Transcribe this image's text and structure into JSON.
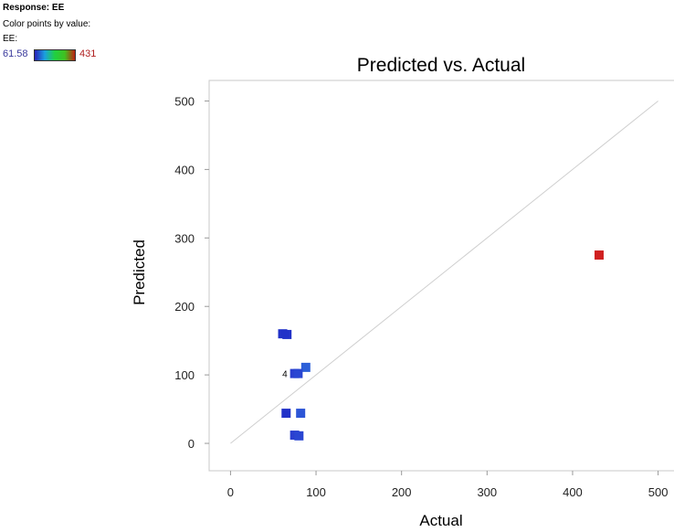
{
  "legend": {
    "heading": "Response: EE",
    "caption": "Color points by value:",
    "var_label": "EE:",
    "min_label": "61.58",
    "max_label": "431",
    "gradient_colors": [
      "#2a20b8",
      "#1aa0e0",
      "#20d040",
      "#40c020",
      "#c02010"
    ]
  },
  "chart_data": {
    "type": "scatter",
    "title": "Predicted vs. Actual",
    "xlabel": "Actual",
    "ylabel": "Predicted",
    "xlim": [
      -25,
      525
    ],
    "ylim": [
      -40,
      530
    ],
    "xticks": [
      "0",
      "100",
      "200",
      "300",
      "400",
      "500"
    ],
    "yticks": [
      "0",
      "100",
      "200",
      "300",
      "400",
      "500"
    ],
    "reference_line": {
      "from": [
        0,
        0
      ],
      "to": [
        500,
        500
      ],
      "color": "#cfcfcf"
    },
    "points": [
      {
        "x": 61,
        "y": 160,
        "color": "#2232c8",
        "label": ""
      },
      {
        "x": 66,
        "y": 159,
        "color": "#2232c8",
        "label": ""
      },
      {
        "x": 88,
        "y": 111,
        "color": "#2c5fd8",
        "label": ""
      },
      {
        "x": 75,
        "y": 102,
        "color": "#2a3fcf",
        "label": "4"
      },
      {
        "x": 79,
        "y": 102,
        "color": "#2a46d2",
        "label": ""
      },
      {
        "x": 65,
        "y": 44,
        "color": "#2232c8",
        "label": ""
      },
      {
        "x": 82,
        "y": 44,
        "color": "#2c55d6",
        "label": ""
      },
      {
        "x": 75,
        "y": 12,
        "color": "#2a3fcf",
        "label": ""
      },
      {
        "x": 80,
        "y": 11,
        "color": "#2a46d2",
        "label": ""
      },
      {
        "x": 431,
        "y": 275,
        "color": "#d02020",
        "label": ""
      }
    ]
  }
}
